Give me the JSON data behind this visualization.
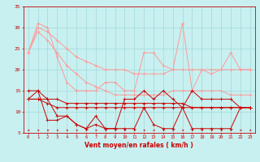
{
  "x": [
    0,
    1,
    2,
    3,
    4,
    5,
    6,
    7,
    8,
    9,
    10,
    11,
    12,
    13,
    14,
    15,
    16,
    17,
    18,
    19,
    20,
    21,
    22,
    23
  ],
  "rafales_max": [
    24,
    31,
    30,
    23,
    17,
    15,
    15,
    15,
    17,
    17,
    15,
    15,
    24,
    24,
    21,
    20,
    31,
    15,
    20,
    19,
    20,
    24,
    20,
    20
  ],
  "rafales_mean_upper": [
    24,
    30,
    29,
    27,
    25,
    23,
    22,
    21,
    20,
    20,
    20,
    19,
    19,
    19,
    19,
    20,
    20,
    20,
    20,
    20,
    20,
    20,
    20,
    20
  ],
  "rafales_mean_lower": [
    24,
    29,
    27,
    24,
    21,
    19,
    17,
    16,
    15,
    14,
    14,
    14,
    14,
    14,
    14,
    15,
    15,
    15,
    15,
    15,
    15,
    14,
    14,
    14
  ],
  "vent_mean_upper": [
    13,
    13,
    13,
    13,
    12,
    12,
    12,
    12,
    12,
    12,
    12,
    12,
    12,
    12,
    12,
    12,
    12,
    11,
    11,
    11,
    11,
    11,
    11,
    11
  ],
  "vent_mean_lower": [
    13,
    13,
    12,
    11,
    11,
    11,
    11,
    11,
    11,
    11,
    11,
    11,
    11,
    11,
    11,
    11,
    11,
    11,
    11,
    11,
    11,
    11,
    11,
    11
  ],
  "vent_max": [
    15,
    15,
    13,
    9,
    9,
    7,
    6,
    9,
    6,
    6,
    13,
    13,
    15,
    13,
    15,
    13,
    11,
    15,
    13,
    13,
    13,
    13,
    11,
    11
  ],
  "vent_min": [
    13,
    15,
    8,
    8,
    9,
    7,
    6,
    7,
    6,
    6,
    6,
    6,
    11,
    7,
    6,
    6,
    11,
    6,
    6,
    6,
    6,
    6,
    11,
    11
  ],
  "background_color": "#c8f0f0",
  "grid_color": "#a0d8d8",
  "line_color_dark": "#cc0000",
  "line_color_light": "#ff9999",
  "xlabel": "Vent moyen/en rafales ( km/h )",
  "ylim": [
    5,
    35
  ],
  "yticks": [
    5,
    10,
    15,
    20,
    25,
    30,
    35
  ],
  "xticks": [
    0,
    1,
    2,
    3,
    4,
    5,
    6,
    7,
    8,
    9,
    10,
    11,
    12,
    13,
    14,
    15,
    16,
    17,
    18,
    19,
    20,
    21,
    22,
    23
  ]
}
